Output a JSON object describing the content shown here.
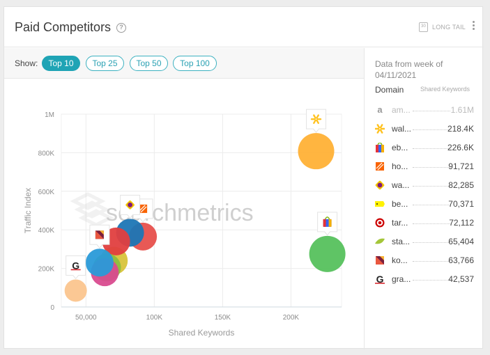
{
  "header": {
    "title": "Paid Competitors",
    "help_icon": "question-circle-icon",
    "long_tail_label": "LONG TAIL",
    "calendar_icon_text": "30"
  },
  "show": {
    "label": "Show:",
    "options": [
      "Top 10",
      "Top 25",
      "Top 50",
      "Top 100"
    ],
    "selected": "Top 10"
  },
  "watermark": "searchmetrics",
  "chart_data": {
    "type": "scatter",
    "xlabel": "Shared Keywords",
    "ylabel": "Traffic Index",
    "xlim": [
      32000,
      237000
    ],
    "ylim": [
      0,
      1000000
    ],
    "x_ticks": [
      {
        "value": 50000,
        "label": "50,000"
      },
      {
        "value": 100000,
        "label": "100K"
      },
      {
        "value": 150000,
        "label": "150K"
      },
      {
        "value": 200000,
        "label": "200K"
      }
    ],
    "y_ticks": [
      {
        "value": 0,
        "label": "0"
      },
      {
        "value": 200000,
        "label": "200K"
      },
      {
        "value": 400000,
        "label": "400K"
      },
      {
        "value": 600000,
        "label": "600K"
      },
      {
        "value": 800000,
        "label": "800K"
      },
      {
        "value": 1000000,
        "label": "1M"
      }
    ],
    "grid": true,
    "points": [
      {
        "domain": "walmart",
        "x": 218400,
        "y": 808000,
        "color": "#ffb136",
        "icon": "walmart-icon"
      },
      {
        "domain": "ebay",
        "x": 226600,
        "y": 275000,
        "color": "#56c15d",
        "icon": "ebay-icon"
      },
      {
        "domain": "homedepot",
        "x": 91721,
        "y": 365000,
        "color": "#e7504c",
        "icon": "home-depot-icon"
      },
      {
        "domain": "wayfair",
        "x": 82285,
        "y": 385000,
        "color": "#1c76b5",
        "icon": "wayfair-icon"
      },
      {
        "domain": "bestbuy",
        "x": 70371,
        "y": 240000,
        "color": "#d8c43b",
        "icon": "best-buy-icon"
      },
      {
        "domain": "target",
        "x": 72112,
        "y": 340000,
        "color": "#e03f3f",
        "icon": "target-icon"
      },
      {
        "domain": "staples",
        "x": 65404,
        "y": 205000,
        "color": "#8cbf3f",
        "icon": "staples-icon"
      },
      {
        "domain": "kohls",
        "x": 63766,
        "y": 180000,
        "color": "#d94b8f",
        "icon": "kohls-icon"
      },
      {
        "domain": "kohls-2",
        "x": 60000,
        "y": 230000,
        "color": "#2a9ad8",
        "icon": "kohls-icon"
      },
      {
        "domain": "grainger",
        "x": 42537,
        "y": 85000,
        "color": "#fbc58e",
        "icon": "grainger-icon"
      }
    ],
    "callouts": [
      {
        "domain": "walmart",
        "icon": "walmart-icon",
        "x": 218400,
        "y": 808000
      },
      {
        "domain": "ebay",
        "icon": "ebay-icon",
        "x": 226600,
        "y": 275000
      },
      {
        "domain": "homedepot",
        "icon": "home-depot-icon",
        "x": 91721,
        "y": 365000
      },
      {
        "domain": "wayfair",
        "icon": "wayfair-icon",
        "x": 82285,
        "y": 385000
      },
      {
        "domain": "kohls",
        "icon": "kohls-icon",
        "x": 60000,
        "y": 230000
      },
      {
        "domain": "grainger",
        "icon": "grainger-icon",
        "x": 42537,
        "y": 85000
      }
    ]
  },
  "side": {
    "title": "Data from week of 04/11/2021",
    "col_domain": "Domain",
    "col_shared": "Shared Keywords",
    "rows": [
      {
        "icon": "amazon-icon",
        "domain": "am...",
        "value": "1.61M",
        "muted": true
      },
      {
        "icon": "walmart-icon",
        "domain": "wal...",
        "value": "218.4K",
        "muted": false
      },
      {
        "icon": "ebay-icon",
        "domain": "eb...",
        "value": "226.6K",
        "muted": false
      },
      {
        "icon": "home-depot-icon",
        "domain": "ho...",
        "value": "91,721",
        "muted": false
      },
      {
        "icon": "wayfair-icon",
        "domain": "wa...",
        "value": "82,285",
        "muted": false
      },
      {
        "icon": "best-buy-icon",
        "domain": "be...",
        "value": "70,371",
        "muted": false
      },
      {
        "icon": "target-icon",
        "domain": "tar...",
        "value": "72,112",
        "muted": false
      },
      {
        "icon": "staples-icon",
        "domain": "sta...",
        "value": "65,404",
        "muted": false
      },
      {
        "icon": "kohls-icon",
        "domain": "ko...",
        "value": "63,766",
        "muted": false
      },
      {
        "icon": "grainger-icon",
        "domain": "gra...",
        "value": "42,537",
        "muted": false
      }
    ]
  }
}
